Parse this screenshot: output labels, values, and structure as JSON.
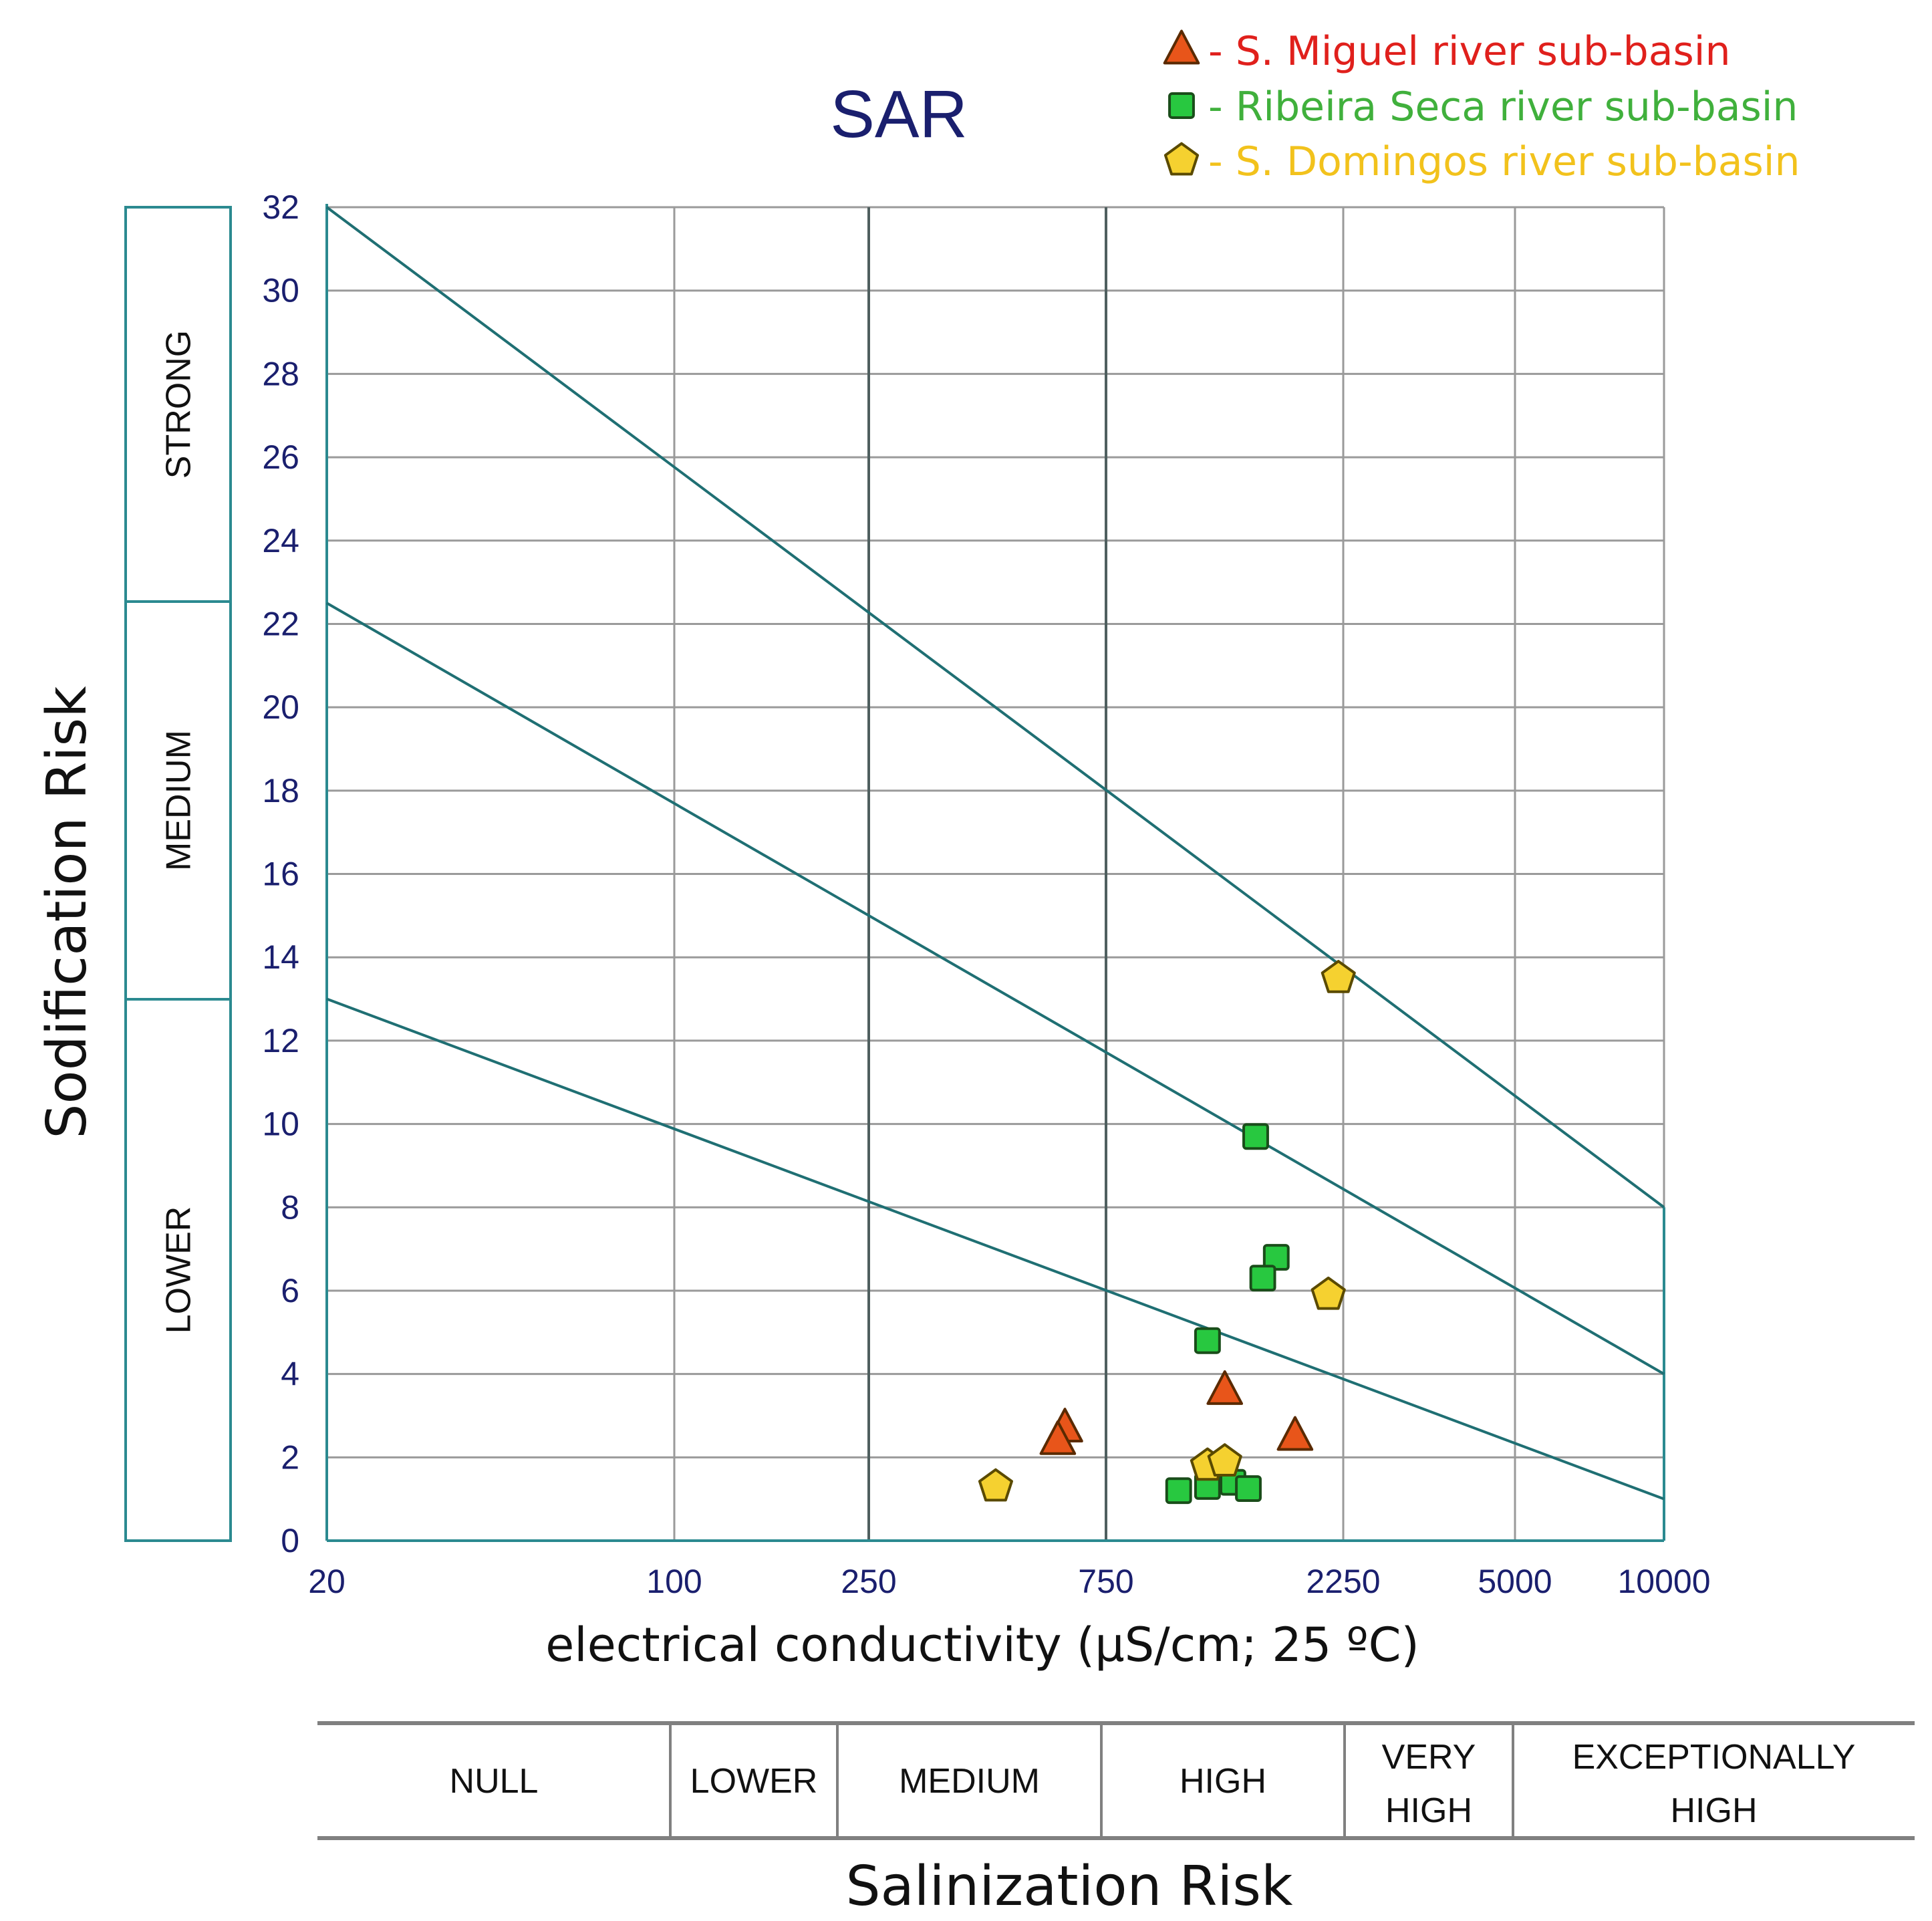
{
  "chart_data": {
    "type": "scatter",
    "title": "SAR",
    "xlabel": "electrical conductivity (μS/cm; 25 ºC)",
    "ylabel": "Sodification Risk",
    "x_scale": "piecewise (tick labels equally meaningful, not linear)",
    "x_ticks": [
      "20",
      "100",
      "250",
      "750",
      "2250",
      "5000",
      "10000"
    ],
    "y_ticks": [
      "0",
      "2",
      "4",
      "6",
      "8",
      "10",
      "12",
      "14",
      "16",
      "18",
      "20",
      "22",
      "24",
      "26",
      "28",
      "30",
      "32"
    ],
    "ylim": [
      0,
      32
    ],
    "xlim": [
      20,
      10000
    ],
    "sodification_bands": [
      {
        "label": "STRONG",
        "from": 22,
        "to": 32
      },
      {
        "label": "MEDIUM",
        "from": 12.5,
        "to": 22
      },
      {
        "label": "LOWER",
        "from": 0,
        "to": 12.5
      }
    ],
    "salinization_bands": [
      {
        "label": "NULL",
        "from": 20,
        "to": 100
      },
      {
        "label": "LOWER",
        "from": 100,
        "to": 250
      },
      {
        "label": "MEDIUM",
        "from": 250,
        "to": 750
      },
      {
        "label": "HIGH",
        "from": 750,
        "to": 2250
      },
      {
        "label": "VERY HIGH",
        "from": 2250,
        "to": 5000
      },
      {
        "label": "EXCEPTIONALLY HIGH",
        "from": 5000,
        "to": 10000
      }
    ],
    "salinization_title": "Salinization Risk",
    "risk_lines": [
      {
        "name": "strong-threshold",
        "points": [
          [
            20,
            32
          ],
          [
            10000,
            8
          ]
        ]
      },
      {
        "name": "medium-threshold",
        "points": [
          [
            20,
            22.5
          ],
          [
            10000,
            4
          ]
        ]
      },
      {
        "name": "lower-threshold",
        "points": [
          [
            20,
            13
          ],
          [
            10000,
            1
          ]
        ]
      }
    ],
    "series": [
      {
        "name": "S. Miguel river sub-basin",
        "legend_label": "-  S. Miguel river sub-basin",
        "marker": "triangle",
        "color": "#e8551a",
        "text_color": "#e0201c",
        "points": [
          [
            620,
            2.7
          ],
          [
            600,
            2.4
          ],
          [
            1300,
            3.6
          ],
          [
            1800,
            2.5
          ]
        ]
      },
      {
        "name": "Ribeira Seca river sub-basin",
        "legend_label": "- Ribeira Seca river sub-basin",
        "marker": "square",
        "color": "#28c840",
        "text_color": "#40b03c",
        "points": [
          [
            1500,
            9.7
          ],
          [
            1650,
            6.8
          ],
          [
            1550,
            6.3
          ],
          [
            1200,
            4.8
          ],
          [
            1050,
            1.2
          ],
          [
            1200,
            1.3
          ],
          [
            1350,
            1.4
          ],
          [
            1450,
            1.25
          ]
        ]
      },
      {
        "name": "S. Domingos river sub-basin",
        "legend_label": "- S. Domingos  river sub-basin",
        "marker": "pentagon",
        "color": "#f5d130",
        "text_color": "#f2c21c",
        "points": [
          [
            2200,
            13.5
          ],
          [
            2100,
            5.9
          ],
          [
            450,
            1.3
          ],
          [
            1200,
            1.8
          ],
          [
            1300,
            1.9
          ]
        ]
      }
    ]
  }
}
